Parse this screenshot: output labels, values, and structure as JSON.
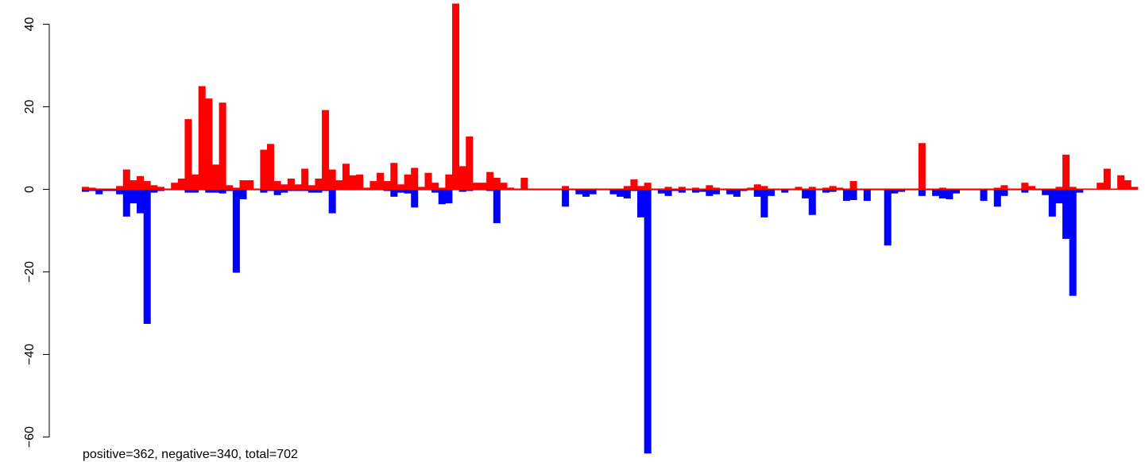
{
  "chart_data": {
    "type": "bar",
    "title": "",
    "xlabel": "",
    "ylabel": "",
    "ylim": [
      -64,
      45
    ],
    "yticks": [
      40,
      20,
      0,
      -20,
      -40,
      -60
    ],
    "ytick_labels": [
      "40",
      "20",
      "0",
      "−20",
      "−40",
      "−60"
    ],
    "grid": false,
    "annotation": "positive=362, negative=340, total=702",
    "colors": {
      "positive": "#ff0000",
      "negative": "#0000ff"
    },
    "series": [
      {
        "name": "positive",
        "values": [
          0.6,
          0.4,
          0.2,
          0.2,
          0.2,
          0.8,
          4.8,
          2.2,
          3.2,
          2.0,
          1.0,
          0.6,
          0.2,
          1.6,
          2.6,
          17.0,
          3.6,
          25.0,
          22.0,
          6.0,
          21.0,
          1.0,
          0.4,
          2.2,
          2.2,
          0.2,
          9.6,
          11.0,
          2.0,
          1.2,
          2.6,
          1.2,
          5.0,
          1.0,
          2.6,
          19.2,
          4.8,
          2.2,
          6.2,
          3.4,
          3.6,
          0.4,
          2.0,
          4.0,
          2.0,
          6.4,
          1.2,
          3.6,
          5.2,
          0.6,
          4.0,
          1.6,
          0.4,
          3.6,
          45.0,
          5.6,
          12.8,
          1.6,
          1.6,
          4.2,
          2.8,
          1.6,
          0.4,
          0.2,
          2.8,
          0.2,
          0.2,
          0.2,
          0.2,
          0.2,
          0.8,
          0.2,
          0.2,
          0.2,
          0.2,
          0.2,
          0.2,
          0.2,
          0.2,
          0.8,
          2.4,
          0.8,
          1.6,
          0.2,
          0.2,
          0.6,
          0.2,
          0.6,
          0.2,
          0.4,
          0.2,
          1.0,
          0.4,
          0.2,
          0.2,
          0.2,
          0.2,
          0.4,
          1.2,
          0.8,
          0.2,
          0.2,
          0.2,
          0.2,
          0.6,
          0.2,
          0.6,
          0.2,
          0.4,
          0.8,
          0.4,
          0.2,
          2.0,
          0.2,
          0.2,
          0.2,
          0.2,
          0.2,
          0.2,
          0.2,
          0.2,
          0.2,
          11.2,
          0.2,
          0.2,
          0.4,
          0.2,
          0.2,
          0.2,
          0.2,
          0.2,
          0.2,
          0.2,
          0.4,
          1.0,
          0.2,
          0.2,
          1.6,
          0.8,
          0.2,
          0.2,
          0.2,
          0.6,
          8.4,
          0.6,
          0.2,
          0.2,
          0.2,
          1.6,
          5.0,
          0.2,
          3.4,
          2.2,
          0.6
        ]
      },
      {
        "name": "negative",
        "values": [
          -0.6,
          -0.4,
          -1.2,
          -0.4,
          -0.4,
          -1.2,
          -6.6,
          -3.4,
          -5.8,
          -32.6,
          -0.8,
          -0.4,
          -0.2,
          -0.2,
          -0.2,
          -0.8,
          -0.8,
          -0.2,
          -0.8,
          -0.8,
          -1.0,
          -0.4,
          -20.2,
          -2.4,
          -0.2,
          -0.2,
          -0.8,
          -0.4,
          -1.4,
          -0.8,
          -0.4,
          -0.4,
          -0.4,
          -0.8,
          -0.8,
          -0.4,
          -5.8,
          -0.2,
          -0.2,
          -0.2,
          -0.2,
          -0.2,
          -0.2,
          -0.2,
          -0.4,
          -1.8,
          -0.8,
          -1.0,
          -4.4,
          -0.2,
          -0.2,
          -0.8,
          -3.6,
          -3.4,
          -0.2,
          -0.6,
          -0.4,
          -0.2,
          -0.2,
          -0.4,
          -8.2,
          -0.2,
          -0.2,
          -0.2,
          -0.2,
          -0.2,
          -0.2,
          -0.2,
          -0.2,
          -0.2,
          -4.2,
          -0.2,
          -1.2,
          -1.8,
          -1.2,
          -0.2,
          -0.2,
          -1.2,
          -1.8,
          -2.2,
          -0.4,
          -6.8,
          -64.0,
          -0.2,
          -1.0,
          -1.6,
          -0.4,
          -0.8,
          -0.2,
          -0.8,
          -0.6,
          -1.6,
          -1.2,
          -0.2,
          -1.2,
          -1.8,
          -0.4,
          -0.2,
          -1.8,
          -6.8,
          -1.6,
          -0.2,
          -0.8,
          -0.2,
          -0.2,
          -2.2,
          -6.2,
          -0.2,
          -0.8,
          -0.6,
          -0.2,
          -2.8,
          -2.6,
          -0.2,
          -2.8,
          -0.2,
          -0.2,
          -13.6,
          -1.0,
          -0.6,
          -0.2,
          -0.2,
          -1.6,
          -0.2,
          -1.6,
          -2.2,
          -2.4,
          -1.0,
          -0.2,
          -0.2,
          -0.2,
          -2.8,
          -0.2,
          -4.2,
          -1.6,
          -0.2,
          -0.2,
          -0.8,
          -0.2,
          -0.2,
          -1.4,
          -6.6,
          -3.4,
          -12.0,
          -25.8,
          -0.8
        ]
      }
    ]
  }
}
